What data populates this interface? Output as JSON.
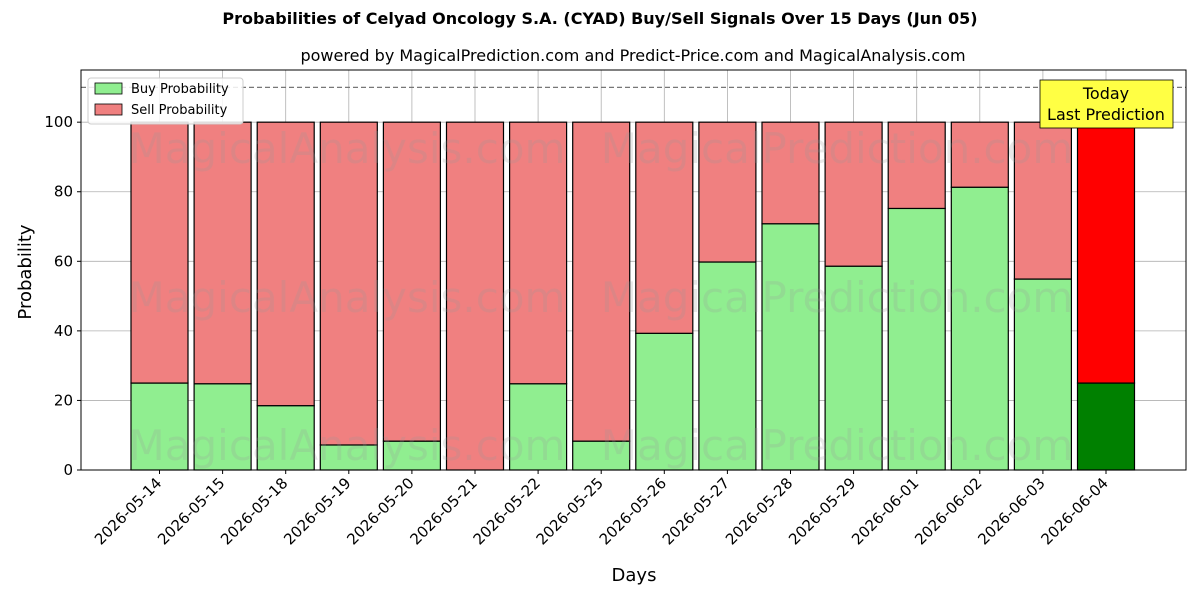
{
  "chart_data": {
    "type": "bar",
    "title": "Probabilities of Celyad Oncology S.A. (CYAD) Buy/Sell Signals Over 15 Days (Jun 05)",
    "subtitle": "powered by MagicalPrediction.com and Predict-Price.com and MagicalAnalysis.com",
    "xlabel": "Days",
    "ylabel": "Probability",
    "ylim": [
      0,
      115
    ],
    "yticks": [
      0,
      20,
      40,
      60,
      80,
      100
    ],
    "reference_line": 110,
    "grid": true,
    "legend_position": "top-left",
    "categories": [
      "2026-05-14",
      "2026-05-15",
      "2026-05-18",
      "2026-05-19",
      "2026-05-20",
      "2026-05-21",
      "2026-05-22",
      "2026-05-25",
      "2026-05-26",
      "2026-05-27",
      "2026-05-28",
      "2026-05-29",
      "2026-06-01",
      "2026-06-02",
      "2026-06-03",
      "2026-06-04"
    ],
    "series": [
      {
        "name": "Buy Probability",
        "color": "#90ee90",
        "highlight_color": "#008000",
        "values": [
          25,
          24.8,
          18.5,
          7.2,
          8.3,
          0,
          24.8,
          8.3,
          39.3,
          59.8,
          70.8,
          58.6,
          75.2,
          81.3,
          54.9,
          25
        ]
      },
      {
        "name": "Sell Probability",
        "color": "#f08080",
        "highlight_color": "#ff0000",
        "values": [
          75,
          75.2,
          81.5,
          92.8,
          91.7,
          100,
          75.2,
          91.7,
          60.7,
          40.2,
          29.2,
          41.4,
          24.8,
          18.7,
          45.1,
          75
        ]
      }
    ],
    "highlight_index": 15,
    "annotation": {
      "line1": "Today",
      "line2": "Last Prediction",
      "color": "#ffff44"
    },
    "watermarks": [
      "MagicalAnalysis.com",
      "MagicalPrediction.com"
    ]
  }
}
